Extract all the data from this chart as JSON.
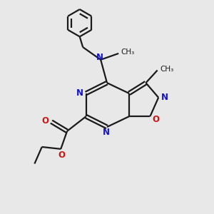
{
  "bg_color": "#e8e8e8",
  "bond_color": "#1a1a1a",
  "n_color": "#1414cc",
  "o_color": "#cc1414",
  "line_width": 1.6,
  "figsize": [
    3.0,
    3.0
  ],
  "dpi": 100,
  "xlim": [
    0,
    10
  ],
  "ylim": [
    0,
    10
  ]
}
